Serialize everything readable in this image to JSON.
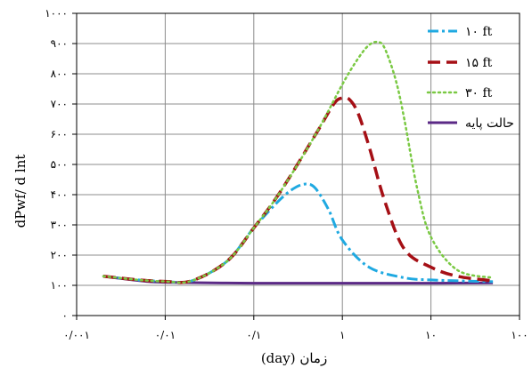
{
  "chart_data": {
    "type": "line",
    "xscale": "log",
    "xlim": [
      0.001,
      100
    ],
    "ylim": [
      0,
      1000
    ],
    "grid": true,
    "xlabel": "زمان (day)",
    "ylabel": "dPwf/ d lnt",
    "xticks": [
      {
        "value": 0.001,
        "label": "۰/۰۰۱"
      },
      {
        "value": 0.01,
        "label": "۰/۰۱"
      },
      {
        "value": 0.1,
        "label": "۰/۱"
      },
      {
        "value": 1,
        "label": "۱"
      },
      {
        "value": 10,
        "label": "۱۰"
      },
      {
        "value": 100,
        "label": "۱۰۰"
      }
    ],
    "yticks": [
      {
        "value": 0,
        "label": "۰"
      },
      {
        "value": 100,
        "label": "۱۰۰"
      },
      {
        "value": 200,
        "label": "۲۰۰"
      },
      {
        "value": 300,
        "label": "۳۰۰"
      },
      {
        "value": 400,
        "label": "۴۰۰"
      },
      {
        "value": 500,
        "label": "۵۰۰"
      },
      {
        "value": 600,
        "label": "۶۰۰"
      },
      {
        "value": 700,
        "label": "۷۰۰"
      },
      {
        "value": 800,
        "label": "۸۰۰"
      },
      {
        "value": 900,
        "label": "۹۰۰"
      },
      {
        "value": 1000,
        "label": "۱۰۰۰"
      }
    ],
    "legend_position": "top-right",
    "series": [
      {
        "name": "۱۰ ft",
        "color": "#1fa9e1",
        "style": "dashdot",
        "x": [
          0.002,
          0.005,
          0.01,
          0.02,
          0.05,
          0.1,
          0.2,
          0.3,
          0.4,
          0.5,
          0.7,
          1,
          2,
          5,
          10,
          20,
          50
        ],
        "y": [
          130,
          118,
          113,
          115,
          180,
          290,
          385,
          425,
          435,
          420,
          350,
          250,
          160,
          125,
          118,
          115,
          112
        ]
      },
      {
        "name": "۱۵ ft",
        "color": "#a50f15",
        "style": "dashed",
        "x": [
          0.002,
          0.005,
          0.01,
          0.02,
          0.05,
          0.1,
          0.2,
          0.5,
          0.8,
          1,
          1.2,
          1.5,
          2,
          3,
          5,
          10,
          20,
          50
        ],
        "y": [
          130,
          118,
          113,
          115,
          180,
          290,
          410,
          600,
          700,
          720,
          715,
          670,
          560,
          380,
          220,
          160,
          130,
          115
        ]
      },
      {
        "name": "۳۰ ft",
        "color": "#7ac943",
        "style": "dotted",
        "x": [
          0.002,
          0.005,
          0.01,
          0.02,
          0.05,
          0.1,
          0.2,
          0.5,
          1,
          1.5,
          2,
          2.5,
          3,
          4,
          5,
          7,
          10,
          20,
          50
        ],
        "y": [
          130,
          118,
          113,
          115,
          180,
          290,
          410,
          600,
          765,
          850,
          895,
          905,
          885,
          780,
          650,
          420,
          260,
          150,
          125
        ]
      },
      {
        "name": "حالت پایه",
        "color": "#5b2a86",
        "style": "solid",
        "x": [
          0.002,
          0.005,
          0.01,
          0.1,
          1,
          10,
          50
        ],
        "y": [
          130,
          116,
          110,
          107,
          107,
          107,
          108
        ]
      }
    ]
  }
}
